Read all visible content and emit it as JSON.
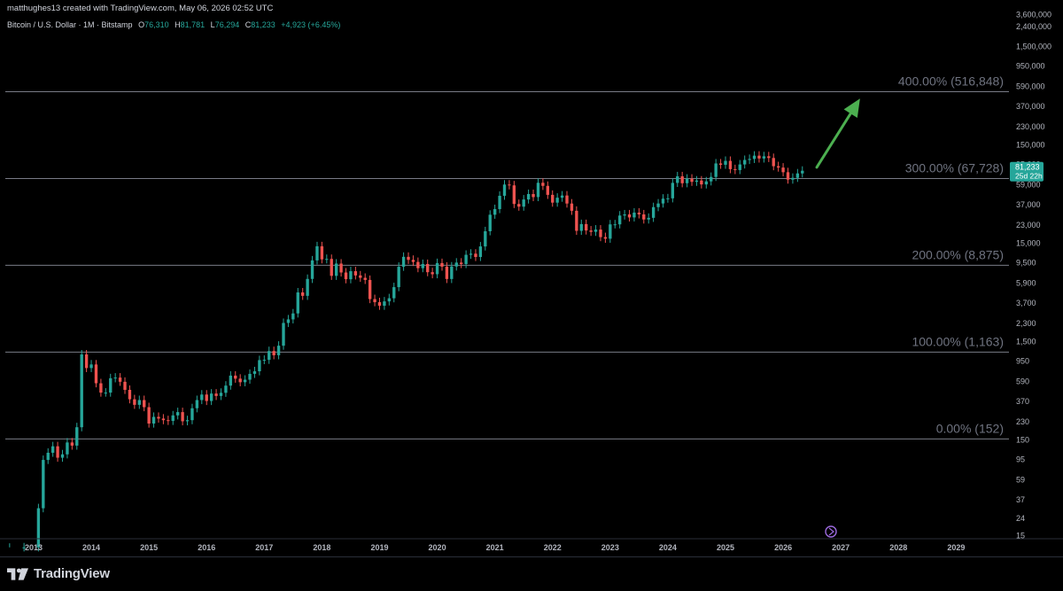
{
  "credit": "matthughes13 created with TradingView.com, May 06, 2026 02:52 UTC",
  "legend": {
    "symbol": "Bitcoin / U.S. Dollar · 1M · Bitstamp",
    "open_key": "O",
    "open": "76,310",
    "high_key": "H",
    "high": "81,781",
    "low_key": "L",
    "low": "76,294",
    "close_key": "C",
    "close": "81,233",
    "change": "+4,923 (+6.45%)"
  },
  "brand": {
    "label": "TradingView",
    "logo_icon": "tradingview-logo-icon"
  },
  "colors": {
    "up": "#26a69a",
    "down": "#ef5350",
    "arrow": "#4caf50",
    "fib_line": "#787b86",
    "fib_text": "#6f7380",
    "badge": "#26a69a"
  },
  "chart_data": {
    "type": "candlestick",
    "y_scale": "log",
    "ylim": [
      15,
      3600000
    ],
    "xlim": [
      "2012-06",
      "2029-12"
    ],
    "price_ticks": [
      "3,600,000",
      "2,400,000",
      "1,500,000",
      "950,000",
      "590,000",
      "370,000",
      "230,000",
      "150,000",
      "95,000",
      "59,000",
      "37,000",
      "23,000",
      "15,000",
      "9,500",
      "5,900",
      "3,700",
      "2,300",
      "1,500",
      "950",
      "590",
      "370",
      "230",
      "150",
      "95",
      "59",
      "37",
      "24",
      "15"
    ],
    "year_ticks": [
      "2013",
      "2014",
      "2015",
      "2016",
      "2017",
      "2018",
      "2019",
      "2020",
      "2021",
      "2022",
      "2023",
      "2024",
      "2025",
      "2026",
      "2027",
      "2028",
      "2029"
    ],
    "last_price_label": "81,233",
    "countdown_label": "25d 22h",
    "fib_levels": [
      {
        "label": "400.00% (516,848)",
        "price": 516848
      },
      {
        "label": "300.00% (67,728)",
        "price": 67728
      },
      {
        "label": "200.00% (8,875)",
        "price": 8875
      },
      {
        "label": "100.00% (1,163)",
        "price": 1163
      },
      {
        "label": "0.00% (152)",
        "price": 152
      }
    ],
    "arrow": {
      "from": [
        "2026-08",
        88000
      ],
      "to": [
        "2027-05",
        440000
      ]
    },
    "anchors": [
      [
        "2012-08",
        12
      ],
      [
        "2012-11",
        12
      ],
      [
        "2013-02",
        30
      ],
      [
        "2013-03",
        93
      ],
      [
        "2013-04",
        110
      ],
      [
        "2013-05",
        128
      ],
      [
        "2013-06",
        98
      ],
      [
        "2013-07",
        106
      ],
      [
        "2013-08",
        140
      ],
      [
        "2013-09",
        130
      ],
      [
        "2013-10",
        200
      ],
      [
        "2013-11",
        1100
      ],
      [
        "2013-12",
        800
      ],
      [
        "2014-01",
        870
      ],
      [
        "2014-02",
        560
      ],
      [
        "2014-03",
        450
      ],
      [
        "2014-04",
        450
      ],
      [
        "2014-05",
        630
      ],
      [
        "2014-06",
        640
      ],
      [
        "2014-07",
        580
      ],
      [
        "2014-08",
        480
      ],
      [
        "2014-09",
        385
      ],
      [
        "2014-10",
        338
      ],
      [
        "2014-11",
        378
      ],
      [
        "2014-12",
        320
      ],
      [
        "2015-01",
        218
      ],
      [
        "2015-02",
        255
      ],
      [
        "2015-03",
        245
      ],
      [
        "2015-04",
        236
      ],
      [
        "2015-05",
        232
      ],
      [
        "2015-06",
        264
      ],
      [
        "2015-07",
        285
      ],
      [
        "2015-08",
        230
      ],
      [
        "2015-09",
        236
      ],
      [
        "2015-10",
        312
      ],
      [
        "2015-11",
        378
      ],
      [
        "2015-12",
        430
      ],
      [
        "2016-01",
        370
      ],
      [
        "2016-02",
        440
      ],
      [
        "2016-03",
        416
      ],
      [
        "2016-04",
        448
      ],
      [
        "2016-05",
        530
      ],
      [
        "2016-06",
        670
      ],
      [
        "2016-07",
        624
      ],
      [
        "2016-08",
        574
      ],
      [
        "2016-09",
        609
      ],
      [
        "2016-10",
        698
      ],
      [
        "2016-11",
        742
      ],
      [
        "2016-12",
        963
      ],
      [
        "2017-01",
        970
      ],
      [
        "2017-02",
        1190
      ],
      [
        "2017-03",
        1080
      ],
      [
        "2017-04",
        1350
      ],
      [
        "2017-05",
        2300
      ],
      [
        "2017-06",
        2500
      ],
      [
        "2017-07",
        2875
      ],
      [
        "2017-08",
        4700
      ],
      [
        "2017-09",
        4340
      ],
      [
        "2017-10",
        6450
      ],
      [
        "2017-11",
        9950
      ],
      [
        "2017-12",
        13860
      ],
      [
        "2018-01",
        10200
      ],
      [
        "2018-02",
        10300
      ],
      [
        "2018-03",
        6930
      ],
      [
        "2018-04",
        9240
      ],
      [
        "2018-05",
        7500
      ],
      [
        "2018-06",
        6400
      ],
      [
        "2018-07",
        7730
      ],
      [
        "2018-08",
        7000
      ],
      [
        "2018-09",
        6620
      ],
      [
        "2018-10",
        6300
      ],
      [
        "2018-11",
        4020
      ],
      [
        "2018-12",
        3740
      ],
      [
        "2019-01",
        3440
      ],
      [
        "2019-02",
        3810
      ],
      [
        "2019-03",
        4100
      ],
      [
        "2019-04",
        5320
      ],
      [
        "2019-05",
        8570
      ],
      [
        "2019-06",
        10820
      ],
      [
        "2019-07",
        10080
      ],
      [
        "2019-08",
        9600
      ],
      [
        "2019-09",
        8300
      ],
      [
        "2019-10",
        9150
      ],
      [
        "2019-11",
        7550
      ],
      [
        "2019-12",
        7200
      ],
      [
        "2020-01",
        9350
      ],
      [
        "2020-02",
        8600
      ],
      [
        "2020-03",
        6440
      ],
      [
        "2020-04",
        8630
      ],
      [
        "2020-05",
        9450
      ],
      [
        "2020-06",
        9140
      ],
      [
        "2020-07",
        11350
      ],
      [
        "2020-08",
        11650
      ],
      [
        "2020-09",
        10780
      ],
      [
        "2020-10",
        13800
      ],
      [
        "2020-11",
        19700
      ],
      [
        "2020-12",
        29000
      ],
      [
        "2021-01",
        33100
      ],
      [
        "2021-02",
        45200
      ],
      [
        "2021-03",
        58800
      ],
      [
        "2021-04",
        57700
      ],
      [
        "2021-05",
        37300
      ],
      [
        "2021-06",
        35040
      ],
      [
        "2021-07",
        41460
      ],
      [
        "2021-08",
        47100
      ],
      [
        "2021-09",
        43820
      ],
      [
        "2021-10",
        61300
      ],
      [
        "2021-11",
        57000
      ],
      [
        "2021-12",
        46200
      ],
      [
        "2022-01",
        38500
      ],
      [
        "2022-02",
        43200
      ],
      [
        "2022-03",
        45500
      ],
      [
        "2022-04",
        37700
      ],
      [
        "2022-05",
        31800
      ],
      [
        "2022-06",
        19900
      ],
      [
        "2022-07",
        23300
      ],
      [
        "2022-08",
        20050
      ],
      [
        "2022-09",
        19430
      ],
      [
        "2022-10",
        20490
      ],
      [
        "2022-11",
        17170
      ],
      [
        "2022-12",
        16540
      ],
      [
        "2023-01",
        23140
      ],
      [
        "2023-02",
        23150
      ],
      [
        "2023-03",
        28470
      ],
      [
        "2023-04",
        29230
      ],
      [
        "2023-05",
        27220
      ],
      [
        "2023-06",
        30480
      ],
      [
        "2023-07",
        29230
      ],
      [
        "2023-08",
        25940
      ],
      [
        "2023-09",
        26970
      ],
      [
        "2023-10",
        34650
      ],
      [
        "2023-11",
        37720
      ],
      [
        "2023-12",
        42270
      ],
      [
        "2024-01",
        42580
      ],
      [
        "2024-02",
        61130
      ],
      [
        "2024-03",
        71330
      ],
      [
        "2024-04",
        60640
      ],
      [
        "2024-05",
        67490
      ],
      [
        "2024-06",
        62670
      ],
      [
        "2024-07",
        64620
      ],
      [
        "2024-08",
        58970
      ],
      [
        "2024-09",
        63330
      ],
      [
        "2024-10",
        70290
      ],
      [
        "2024-11",
        96400
      ],
      [
        "2024-12",
        93430
      ],
      [
        "2025-01",
        102400
      ],
      [
        "2025-02",
        84350
      ],
      [
        "2025-03",
        82550
      ],
      [
        "2025-04",
        94170
      ],
      [
        "2025-05",
        104600
      ],
      [
        "2025-06",
        107100
      ],
      [
        "2025-07",
        115700
      ],
      [
        "2025-08",
        108200
      ],
      [
        "2025-09",
        114000
      ],
      [
        "2025-10",
        109500
      ],
      [
        "2025-11",
        90400
      ],
      [
        "2025-12",
        87500
      ],
      [
        "2026-01",
        78500
      ],
      [
        "2026-02",
        66000
      ],
      [
        "2026-03",
        68800
      ],
      [
        "2026-04",
        76310
      ],
      [
        "2026-05",
        81233
      ]
    ],
    "candles_note": "wicks derived from consecutive anchors",
    "last_bar": {
      "date": "2026-05",
      "open": 76310,
      "high": 81781,
      "low": 76294,
      "close": 81233
    }
  }
}
